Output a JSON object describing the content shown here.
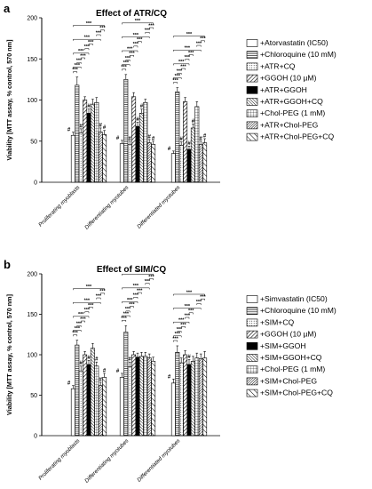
{
  "chart_data": [
    {
      "panel": "a",
      "type": "bar",
      "title": "Effect of ATR/CQ",
      "ylabel": "Viability [MTT assay, % control, 570 nm]",
      "ylim": [
        0,
        200
      ],
      "yticks": [
        "0",
        "50",
        "100",
        "150",
        "200"
      ],
      "categories": [
        "Proliferating myoblasts",
        "Differentiating myotubes",
        "Differentiated myotubes"
      ],
      "series": [
        {
          "name": "+Atorvastatin (IC50)",
          "pattern": "open",
          "values": [
            57,
            47,
            35
          ]
        },
        {
          "name": "+Chloroquine (10 mM)",
          "pattern": "hlines",
          "values": [
            118,
            125,
            110
          ]
        },
        {
          "name": "+ATR+CQ",
          "pattern": "dots",
          "values": [
            60,
            46,
            45
          ]
        },
        {
          "name": "+GGOH (10 µM)",
          "pattern": "diag",
          "values": [
            100,
            104,
            98
          ]
        },
        {
          "name": "+ATR+GGOH",
          "pattern": "solid",
          "values": [
            84,
            68,
            40
          ]
        },
        {
          "name": "+ATR+GGOH+CQ",
          "pattern": "diag2",
          "values": [
            95,
            84,
            66
          ]
        },
        {
          "name": "+Chol-PEG (1 mM)",
          "pattern": "grid",
          "values": [
            97,
            97,
            92
          ]
        },
        {
          "name": "+ATR+Chol-PEG",
          "pattern": "diag3",
          "values": [
            61,
            48,
            46
          ]
        },
        {
          "name": "+ATR+Chol-PEG+CQ",
          "pattern": "backdiag",
          "values": [
            58,
            46,
            48
          ]
        }
      ],
      "errors": [
        [
          4,
          10,
          5,
          4,
          5,
          6,
          6,
          5,
          5
        ],
        [
          4,
          6,
          4,
          5,
          5,
          5,
          4,
          4,
          4
        ],
        [
          3,
          5,
          4,
          5,
          4,
          5,
          6,
          4,
          5
        ]
      ]
    },
    {
      "panel": "b",
      "type": "bar",
      "title": "Effect of SIM/CQ",
      "ylabel": "Viability [MTT assay, % control, 570 nm]",
      "ylim": [
        0,
        200
      ],
      "yticks": [
        "0",
        "50",
        "100",
        "150",
        "200"
      ],
      "categories": [
        "Proliferating myoblasts",
        "Differentiating myotubes",
        "Differentiated myotubes"
      ],
      "series": [
        {
          "name": "+Simvastatin (IC50)",
          "pattern": "open",
          "values": [
            58,
            72,
            65
          ]
        },
        {
          "name": "+Chloroquine (10 mM)",
          "pattern": "hlines",
          "values": [
            112,
            128,
            103
          ]
        },
        {
          "name": "+SIM+CQ",
          "pattern": "dots",
          "values": [
            80,
            85,
            90
          ]
        },
        {
          "name": "+GGOH (10 µM)",
          "pattern": "diag",
          "values": [
            100,
            100,
            100
          ]
        },
        {
          "name": "+SIM+GGOH",
          "pattern": "solid",
          "values": [
            88,
            97,
            88
          ]
        },
        {
          "name": "+SIM+GGOH+CQ",
          "pattern": "diag2",
          "values": [
            108,
            98,
            92
          ]
        },
        {
          "name": "+Chol-PEG (1 mM)",
          "pattern": "grid",
          "values": [
            86,
            98,
            96
          ]
        },
        {
          "name": "+SIM+Chol-PEG",
          "pattern": "diag3",
          "values": [
            62,
            96,
            95
          ]
        },
        {
          "name": "+SIM+Chol-PEG+CQ",
          "pattern": "backdiag",
          "values": [
            72,
            92,
            96
          ]
        }
      ],
      "errors": [
        [
          4,
          6,
          6,
          4,
          5,
          6,
          5,
          4,
          5
        ],
        [
          5,
          8,
          6,
          4,
          5,
          5,
          5,
          5,
          5
        ],
        [
          5,
          8,
          6,
          5,
          6,
          6,
          6,
          6,
          8
        ]
      ]
    }
  ],
  "marks": {
    "significance": "***",
    "hash": "#"
  }
}
